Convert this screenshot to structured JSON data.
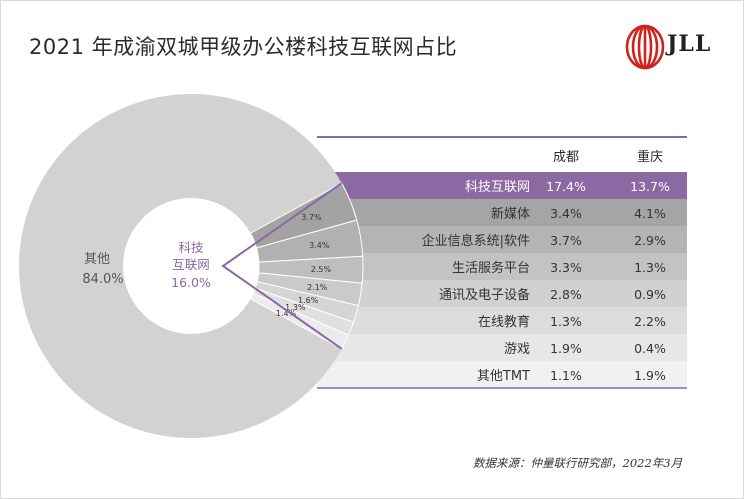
{
  "title": "2021 年成渝双城甲级办公楼科技互联网占比",
  "logo": {
    "text": "JLL",
    "icon": "jll-flame-icon"
  },
  "source": "数据来源：仲量联行研究部，2022年3月",
  "colors": {
    "purple": "#8c69a3",
    "purple_dark": "#7a5493",
    "gray_big": "#d2d2d2"
  },
  "chart_data": {
    "type": "pie",
    "donut": {
      "slices": [
        {
          "label": "其他",
          "value": 84.0,
          "display": "84.0%"
        },
        {
          "label": "科技互联网",
          "label_lines": [
            "科技",
            "互联网"
          ],
          "value": 16.0,
          "display": "16.0%"
        }
      ],
      "sub_slices": [
        {
          "value": 3.7,
          "display": "3.7%"
        },
        {
          "value": 3.4,
          "display": "3.4%"
        },
        {
          "value": 2.5,
          "display": "2.5%"
        },
        {
          "value": 2.1,
          "display": "2.1%"
        },
        {
          "value": 1.6,
          "display": "1.6%"
        },
        {
          "value": 1.3,
          "display": "1.3%"
        },
        {
          "value": 1.4,
          "display": "1.4%"
        }
      ]
    },
    "table": {
      "columns": [
        "成都",
        "重庆"
      ],
      "rows": [
        {
          "label": "科技互联网",
          "chengdu": "17.4%",
          "chongqing": "13.7%",
          "highlight": true
        },
        {
          "label": "新媒体",
          "chengdu": "3.4%",
          "chongqing": "4.1%"
        },
        {
          "label": "企业信息系统|软件",
          "chengdu": "3.7%",
          "chongqing": "2.9%"
        },
        {
          "label": "生活服务平台",
          "chengdu": "3.3%",
          "chongqing": "1.3%"
        },
        {
          "label": "通讯及电子设备",
          "chengdu": "2.8%",
          "chongqing": "0.9%"
        },
        {
          "label": "在线教育",
          "chengdu": "1.3%",
          "chongqing": "2.2%"
        },
        {
          "label": "游戏",
          "chengdu": "1.9%",
          "chongqing": "0.4%"
        },
        {
          "label": "其他TMT",
          "chengdu": "1.1%",
          "chongqing": "1.9%"
        }
      ]
    }
  }
}
